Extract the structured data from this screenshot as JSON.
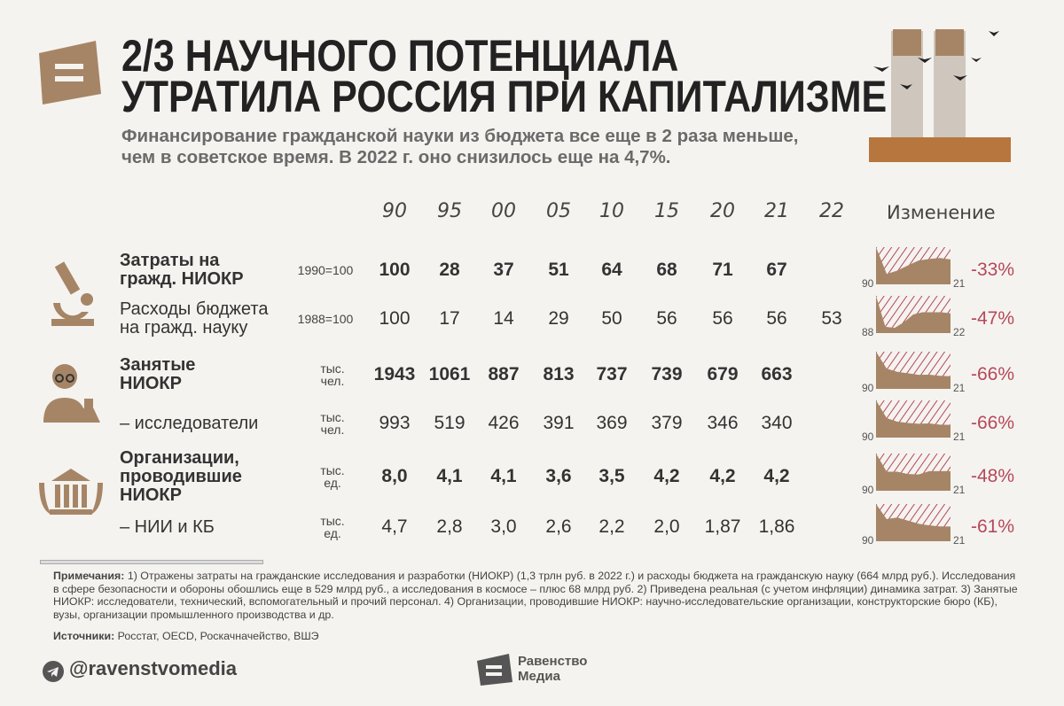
{
  "header": {
    "title_line1": "2/3 НАУЧНОГО ПОТЕНЦИАЛА",
    "title_line2": "УТРАТИЛА РОССИЯ ПРИ КАПИТАЛИЗМЕ",
    "subtitle_line1": "Финансирование гражданской науки из бюджета все еще в 2 раза меньше,",
    "subtitle_line2": "чем в советское время. В 2022 г. оно снизилось еще на 4,7%."
  },
  "colors": {
    "background": "#f5f3ef",
    "accent_brown": "#a68566",
    "negative_red": "#b5485a"
  },
  "chart_data": {
    "type": "table",
    "columns": [
      "90",
      "95",
      "00",
      "05",
      "10",
      "15",
      "20",
      "21",
      "22"
    ],
    "change_header": "Изменение",
    "rows": [
      {
        "label": [
          "Затраты на",
          "гражд. НИОКР"
        ],
        "bold": true,
        "unit": [
          "1990=100"
        ],
        "values": [
          "100",
          "28",
          "37",
          "51",
          "64",
          "68",
          "71",
          "67",
          ""
        ],
        "spark_start": "90",
        "spark_end": "21",
        "change": "-33%"
      },
      {
        "label": [
          "Расходы бюджета",
          "на гражд. науку"
        ],
        "bold": false,
        "unit": [
          "1988=100"
        ],
        "values": [
          "100",
          "17",
          "14",
          "29",
          "50",
          "56",
          "56",
          "56",
          "53"
        ],
        "spark_start": "88",
        "spark_end": "22",
        "change": "-47%"
      },
      {
        "label": [
          "Занятые",
          "НИОКР"
        ],
        "bold": true,
        "unit": [
          "тыс.",
          "чел."
        ],
        "values": [
          "1943",
          "1061",
          "887",
          "813",
          "737",
          "739",
          "679",
          "663",
          ""
        ],
        "spark_start": "90",
        "spark_end": "21",
        "change": "-66%"
      },
      {
        "label": [
          "– исследователи"
        ],
        "bold": false,
        "unit": [
          "тыс.",
          "чел."
        ],
        "values": [
          "993",
          "519",
          "426",
          "391",
          "369",
          "379",
          "346",
          "340",
          ""
        ],
        "spark_start": "90",
        "spark_end": "21",
        "change": "-66%"
      },
      {
        "label": [
          "Организации,",
          "проводившие",
          "НИОКР"
        ],
        "bold": true,
        "unit": [
          "тыс.",
          "ед."
        ],
        "values": [
          "8,0",
          "4,1",
          "4,1",
          "3,6",
          "3,5",
          "4,2",
          "4,2",
          "4,2",
          ""
        ],
        "spark_start": "90",
        "spark_end": "21",
        "change": "-48%"
      },
      {
        "label": [
          "– НИИ и КБ"
        ],
        "bold": false,
        "unit": [
          "тыс.",
          "ед."
        ],
        "values": [
          "4,7",
          "2,8",
          "3,0",
          "2,6",
          "2,2",
          "2,0",
          "1,87",
          "1,86",
          ""
        ],
        "spark_start": "90",
        "spark_end": "21",
        "change": "-61%"
      }
    ]
  },
  "icons": [
    "equals-logo-icon",
    "microscope-icon",
    "scientist-icon",
    "institution-icon",
    "telegram-icon",
    "building-illustration"
  ],
  "footer": {
    "notes_label": "Примечания:",
    "notes_text": " 1) Отражены затраты на гражданские исследования и разработки (НИОКР) (1,3 трлн руб. в 2022 г.) и расходы бюджета на гражданскую науку (664 млрд руб.). Исследования в сфере безопасности и обороны обошлись еще в 529 млрд руб., а исследования в космосе – плюс 68 млрд руб. 2) Приведена реальная (с учетом инфляции) динамика затрат. 3) Занятые НИОКР: исследователи, технический, вспомогательный и прочий персонал. 4) Организации, проводившие НИОКР: научно-исследовательские организации, конструкторские бюро (КБ), вузы, организации промышленного производства и др.",
    "sources_label": "Источники:",
    "sources_text": " Росстат, OECD, Роскачначейство, ВШЭ",
    "handle": "@ravenstvomedia",
    "brand_line1": "Равенство",
    "brand_line2": "Медиа"
  }
}
